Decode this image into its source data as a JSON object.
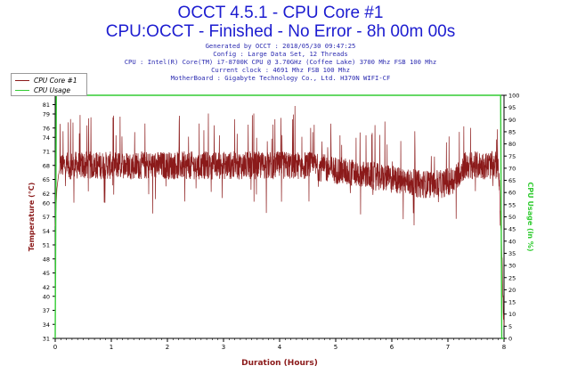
{
  "header": {
    "title": "OCCT 4.5.1 - CPU Core #1",
    "subtitle": "CPU:OCCT - Finished - No Error - 8h 00m 00s",
    "info_lines": [
      "Generated by OCCT : 2018/05/30 09:47:25",
      "Config : Large Data Set, 12 Threads",
      "CPU : Intel(R) Core(TM) i7-8700K CPU @ 3.70GHz (Coffee Lake) 3700 Mhz FSB 100 Mhz",
      "Current clock : 4691 Mhz FSB 100 Mhz",
      "MotherBoard : Gigabyte Technology Co., Ltd. H370N WIFI-CF"
    ]
  },
  "legend": {
    "items": [
      {
        "label": "CPU Core #1",
        "color": "#8b1a1a"
      },
      {
        "label": "CPU Usage",
        "color": "#33cc33"
      }
    ]
  },
  "chart_data": {
    "type": "line",
    "xlabel": "Duration (Hours)",
    "ylabel": "Temperature (°C)",
    "y2label": "CPU Usage (in %)",
    "xlim": [
      0,
      8
    ],
    "ylim": [
      31,
      83
    ],
    "y2lim": [
      0,
      100
    ],
    "x_ticks": [
      0,
      1,
      2,
      3,
      4,
      5,
      6,
      7,
      8
    ],
    "y_ticks": [
      31,
      34,
      37,
      40,
      42,
      45,
      48,
      51,
      54,
      57,
      60,
      62,
      65,
      68,
      71,
      74,
      76,
      79,
      81
    ],
    "y2_ticks": [
      0,
      5,
      10,
      15,
      20,
      25,
      30,
      35,
      40,
      45,
      50,
      55,
      60,
      65,
      70,
      75,
      80,
      85,
      90,
      95,
      100
    ],
    "grid": false,
    "series": [
      {
        "name": "CPU Core #1",
        "color": "#8b1a1a",
        "axis": "left",
        "x": [
          0,
          0.03,
          0.06,
          0.1,
          0.5,
          1.0,
          1.5,
          2.0,
          2.5,
          3.0,
          3.5,
          4.0,
          4.5,
          5.0,
          5.5,
          6.0,
          6.5,
          6.9,
          7.1,
          7.3,
          7.5,
          7.7,
          7.9,
          7.96,
          7.99,
          8.0
        ],
        "y": [
          55,
          63,
          66,
          68,
          68,
          68,
          68,
          68,
          68,
          68,
          68,
          68,
          68,
          67,
          66,
          65,
          64,
          64,
          65,
          68,
          68,
          68,
          68,
          50,
          36,
          34
        ]
      },
      {
        "name": "CPU Usage",
        "color": "#33cc33",
        "axis": "right",
        "x": [
          0,
          0.02,
          7.94,
          7.96,
          8.0
        ],
        "y": [
          0,
          100,
          100,
          0,
          0
        ]
      }
    ]
  }
}
